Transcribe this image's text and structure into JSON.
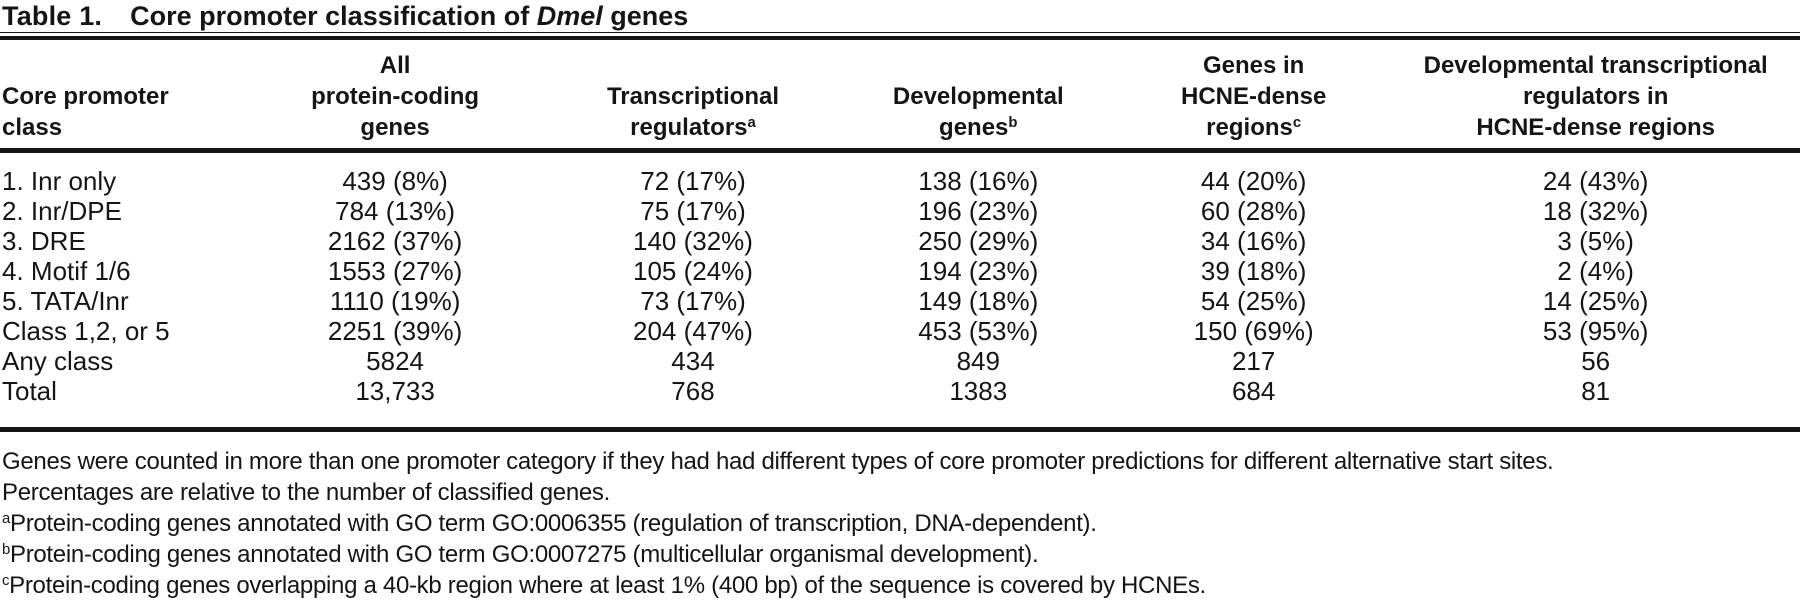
{
  "table": {
    "label": "Table 1.",
    "title_prefix": "Core promoter classification of ",
    "title_species": "Dmel",
    "title_suffix": " genes",
    "columns": [
      {
        "label": "Core promoter\nclass"
      },
      {
        "label": "All\nprotein-coding\ngenes"
      },
      {
        "label": "Transcriptional\nregulators",
        "sup": "a"
      },
      {
        "label": "Developmental\ngenes",
        "sup": "b"
      },
      {
        "label": "Genes in\nHCNE-dense\nregions",
        "sup": "c"
      },
      {
        "label": "Developmental transcriptional\nregulators in\nHCNE-dense regions"
      }
    ],
    "rows": [
      {
        "class": "1. Inr only",
        "values": [
          "439 (8%)",
          "72 (17%)",
          "138 (16%)",
          "44 (20%)",
          "24 (43%)"
        ]
      },
      {
        "class": "2. Inr/DPE",
        "values": [
          "784 (13%)",
          "75 (17%)",
          "196 (23%)",
          "60 (28%)",
          "18 (32%)"
        ]
      },
      {
        "class": "3. DRE",
        "values": [
          "2162 (37%)",
          "140 (32%)",
          "250 (29%)",
          "34 (16%)",
          "3 (5%)"
        ]
      },
      {
        "class": "4. Motif 1/6",
        "values": [
          "1553 (27%)",
          "105 (24%)",
          "194 (23%)",
          "39 (18%)",
          "2 (4%)"
        ]
      },
      {
        "class": "5. TATA/Inr",
        "values": [
          "1110 (19%)",
          "73 (17%)",
          "149 (18%)",
          "54 (25%)",
          "14 (25%)"
        ]
      },
      {
        "class": "Class 1,2, or 5",
        "values": [
          "2251 (39%)",
          "204 (47%)",
          "453 (53%)",
          "150 (69%)",
          "53 (95%)"
        ]
      },
      {
        "class": "Any class",
        "values": [
          "5824",
          "434",
          "849",
          "217",
          "56"
        ]
      },
      {
        "class": "Total",
        "values": [
          "13,733",
          "768",
          "1383",
          "684",
          "81"
        ]
      }
    ],
    "footnotes": {
      "general_1": "Genes were counted in more than one promoter category if they had had different types of core promoter predictions for different alternative start sites.",
      "general_2": "Percentages are relative to the number of classified genes.",
      "a": {
        "marker": "a",
        "text": "Protein-coding genes annotated with GO term GO:0006355 (regulation of transcription, DNA-dependent)."
      },
      "b": {
        "marker": "b",
        "text": "Protein-coding genes annotated with GO term GO:0007275 (multicellular organismal development)."
      },
      "c": {
        "marker": "c",
        "text": "Protein-coding genes overlapping a 40-kb region where at least 1% (400 bp) of the sequence is covered by HCNEs."
      }
    }
  }
}
